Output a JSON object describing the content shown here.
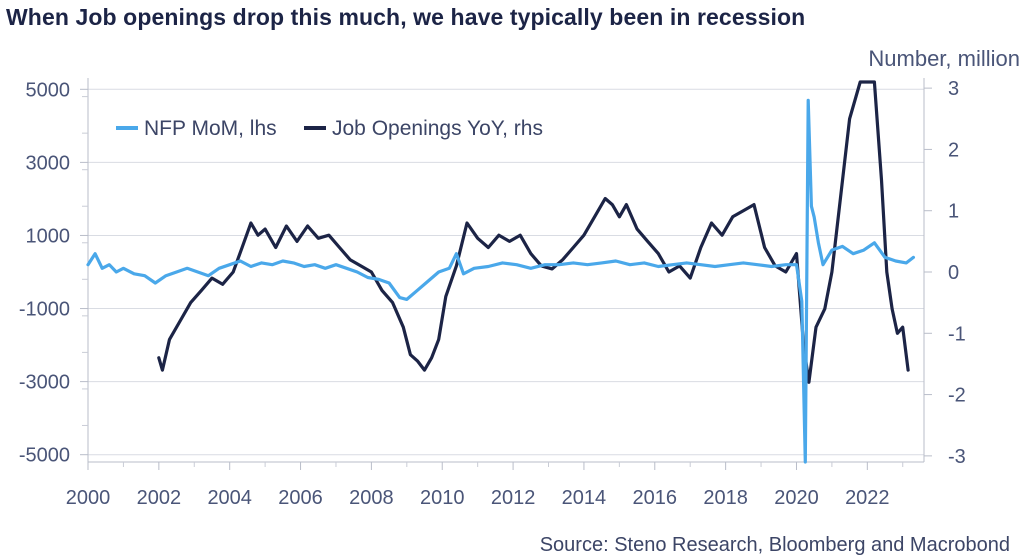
{
  "chart_data": {
    "type": "line",
    "title": "When Job openings drop this much, we have typically been in recession",
    "right_axis_title": "Number, million",
    "source": "Source: Steno Research, Bloomberg and Macrobond",
    "x_ticks": [
      "2000",
      "2002",
      "2004",
      "2006",
      "2008",
      "2010",
      "2012",
      "2014",
      "2016",
      "2018",
      "2020",
      "2022"
    ],
    "xlim": [
      2000,
      2023.6
    ],
    "left_axis": {
      "ticks": [
        "5000",
        "3000",
        "1000",
        "-1000",
        "-3000",
        "-5000"
      ],
      "ylim": [
        -5200,
        5200
      ]
    },
    "right_axis": {
      "ticks": [
        "3",
        "2",
        "1",
        "0",
        "-1",
        "-2",
        "-3"
      ],
      "ylim": [
        -3.1,
        3.1
      ]
    },
    "grid": true,
    "legend_position": "top-left",
    "series": [
      {
        "name": "NFP MoM, lhs",
        "axis": "left",
        "color": "#4aa8ea",
        "x": [
          2000.0,
          2000.2,
          2000.4,
          2000.6,
          2000.8,
          2001.0,
          2001.3,
          2001.6,
          2001.9,
          2002.2,
          2002.5,
          2002.8,
          2003.1,
          2003.4,
          2003.7,
          2004.0,
          2004.3,
          2004.6,
          2004.9,
          2005.2,
          2005.5,
          2005.8,
          2006.1,
          2006.4,
          2006.7,
          2007.0,
          2007.3,
          2007.6,
          2007.9,
          2008.2,
          2008.5,
          2008.8,
          2009.0,
          2009.3,
          2009.6,
          2009.9,
          2010.2,
          2010.4,
          2010.6,
          2010.9,
          2011.3,
          2011.7,
          2012.1,
          2012.5,
          2012.9,
          2013.3,
          2013.7,
          2014.1,
          2014.5,
          2014.9,
          2015.3,
          2015.7,
          2016.1,
          2016.5,
          2016.9,
          2017.3,
          2017.7,
          2018.1,
          2018.5,
          2018.9,
          2019.3,
          2019.7,
          2020.0,
          2020.15,
          2020.25,
          2020.33,
          2020.42,
          2020.5,
          2020.62,
          2020.75,
          2021.0,
          2021.3,
          2021.6,
          2021.9,
          2022.2,
          2022.5,
          2022.8,
          2023.1,
          2023.3
        ],
        "y": [
          200,
          500,
          100,
          200,
          0,
          100,
          -50,
          -100,
          -300,
          -100,
          0,
          100,
          0,
          -100,
          100,
          200,
          300,
          150,
          250,
          200,
          300,
          250,
          150,
          200,
          100,
          200,
          100,
          0,
          -150,
          -200,
          -300,
          -700,
          -750,
          -500,
          -250,
          0,
          100,
          500,
          -50,
          100,
          150,
          250,
          200,
          100,
          200,
          200,
          250,
          200,
          250,
          300,
          200,
          250,
          150,
          200,
          250,
          200,
          150,
          200,
          250,
          200,
          150,
          200,
          200,
          -800,
          -5200,
          4700,
          1800,
          1500,
          800,
          200,
          600,
          700,
          500,
          600,
          800,
          400,
          300,
          250,
          400
        ]
      },
      {
        "name": "Job Openings YoY, rhs",
        "axis": "right",
        "color": "#1c2446",
        "x": [
          2002.0,
          2002.1,
          2002.3,
          2002.6,
          2002.9,
          2003.2,
          2003.5,
          2003.8,
          2004.1,
          2004.35,
          2004.6,
          2004.8,
          2005.0,
          2005.3,
          2005.6,
          2005.9,
          2006.2,
          2006.5,
          2006.8,
          2007.1,
          2007.4,
          2007.7,
          2008.0,
          2008.3,
          2008.6,
          2008.9,
          2009.1,
          2009.3,
          2009.5,
          2009.7,
          2009.9,
          2010.1,
          2010.4,
          2010.7,
          2011.0,
          2011.3,
          2011.6,
          2011.9,
          2012.2,
          2012.5,
          2012.8,
          2013.1,
          2013.4,
          2013.7,
          2014.0,
          2014.3,
          2014.6,
          2014.8,
          2015.0,
          2015.2,
          2015.5,
          2015.8,
          2016.1,
          2016.4,
          2016.7,
          2017.0,
          2017.3,
          2017.6,
          2017.9,
          2018.2,
          2018.5,
          2018.8,
          2019.1,
          2019.4,
          2019.7,
          2020.0,
          2020.2,
          2020.35,
          2020.55,
          2020.8,
          2021.0,
          2021.2,
          2021.5,
          2021.8,
          2022.0,
          2022.2,
          2022.4,
          2022.55,
          2022.7,
          2022.85,
          2023.0,
          2023.15
        ],
        "y": [
          -1.4,
          -1.6,
          -1.1,
          -0.8,
          -0.5,
          -0.3,
          -0.1,
          -0.2,
          0.0,
          0.4,
          0.8,
          0.6,
          0.7,
          0.4,
          0.75,
          0.5,
          0.75,
          0.55,
          0.6,
          0.4,
          0.2,
          0.1,
          0.0,
          -0.3,
          -0.5,
          -0.9,
          -1.35,
          -1.45,
          -1.6,
          -1.4,
          -1.1,
          -0.4,
          0.1,
          0.8,
          0.55,
          0.4,
          0.6,
          0.5,
          0.6,
          0.3,
          0.1,
          0.05,
          0.2,
          0.4,
          0.6,
          0.9,
          1.2,
          1.1,
          0.9,
          1.1,
          0.7,
          0.5,
          0.3,
          0.0,
          0.1,
          -0.1,
          0.4,
          0.8,
          0.6,
          0.9,
          1.0,
          1.1,
          0.4,
          0.1,
          0.0,
          0.3,
          -1.2,
          -1.8,
          -0.9,
          -0.6,
          0.0,
          1.0,
          2.5,
          3.3,
          3.3,
          3.3,
          1.5,
          0.0,
          -0.6,
          -1.0,
          -0.9,
          -1.6
        ]
      }
    ]
  }
}
